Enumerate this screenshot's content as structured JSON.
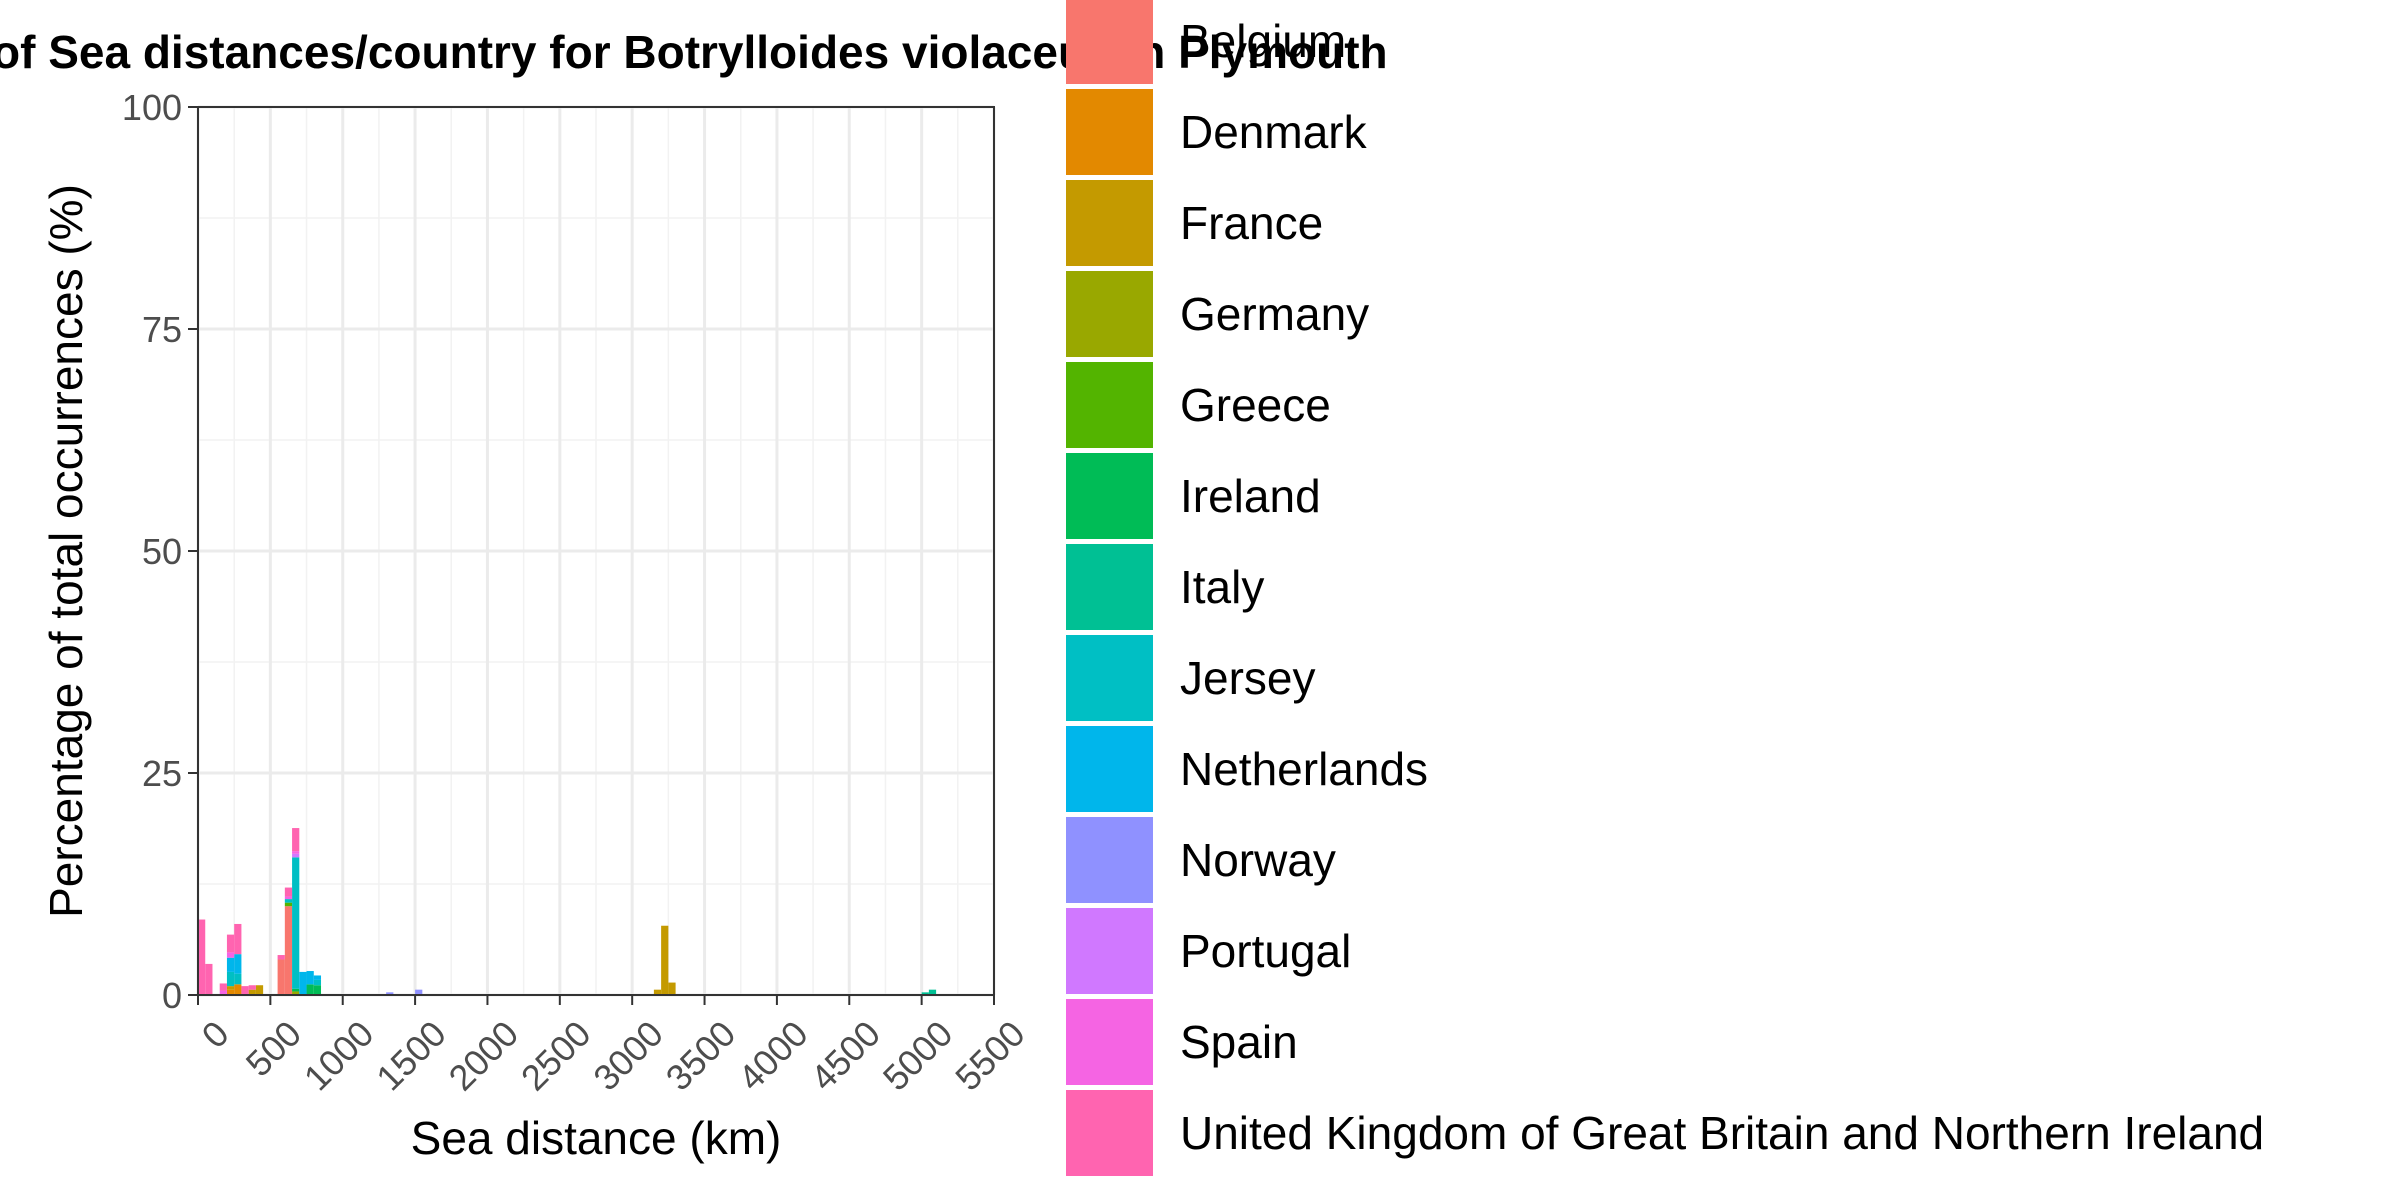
{
  "chart_data": {
    "type": "bar",
    "stacked": true,
    "title": "of Sea distances/country for Botrylloides violaceus in Plymouth",
    "xlabel": "Sea distance (km)",
    "ylabel": "Percentage of total occurrences (%)",
    "xlim": [
      0,
      5500
    ],
    "ylim": [
      0,
      100
    ],
    "x_ticks": [
      "0",
      "500",
      "1000",
      "1500",
      "2000",
      "2500",
      "3000",
      "3500",
      "4000",
      "4500",
      "5000",
      "5500"
    ],
    "y_ticks": [
      "0",
      "25",
      "50",
      "75",
      "100"
    ],
    "grid": true,
    "legend_position": "right",
    "bin_width_km": 50,
    "series": [
      {
        "name": "Belgium",
        "color": "#F8766D",
        "points": [
          {
            "x": 550,
            "y": 4.0
          },
          {
            "x": 600,
            "y": 10.0
          }
        ]
      },
      {
        "name": "Denmark",
        "color": "#E38900",
        "points": [
          {
            "x": 200,
            "y": 0.6
          },
          {
            "x": 250,
            "y": 1.2
          }
        ]
      },
      {
        "name": "France",
        "color": "#C49A00",
        "points": [
          {
            "x": 200,
            "y": 0.4
          },
          {
            "x": 350,
            "y": 0.6
          },
          {
            "x": 400,
            "y": 1.1
          },
          {
            "x": 3150,
            "y": 0.6
          },
          {
            "x": 3200,
            "y": 7.8
          },
          {
            "x": 3250,
            "y": 1.4
          }
        ]
      },
      {
        "name": "Germany",
        "color": "#99A800",
        "points": [
          {
            "x": 650,
            "y": 0.4
          }
        ]
      },
      {
        "name": "Greece",
        "color": "#53B400",
        "points": [
          {
            "x": 600,
            "y": 0.4
          }
        ]
      },
      {
        "name": "Ireland",
        "color": "#00BC56",
        "points": [
          {
            "x": 650,
            "y": 0.3
          },
          {
            "x": 750,
            "y": 1.2
          },
          {
            "x": 800,
            "y": 1.1
          }
        ]
      },
      {
        "name": "Italy",
        "color": "#00C094",
        "points": [
          {
            "x": 5000,
            "y": 0.3
          },
          {
            "x": 5050,
            "y": 0.6
          }
        ]
      },
      {
        "name": "Jersey",
        "color": "#00BFC4",
        "points": [
          {
            "x": 200,
            "y": 1.6
          },
          {
            "x": 250,
            "y": 1.2
          },
          {
            "x": 600,
            "y": 0.4
          },
          {
            "x": 650,
            "y": 14.8
          },
          {
            "x": 800,
            "y": 0.6
          }
        ]
      },
      {
        "name": "Netherlands",
        "color": "#00B6EB",
        "points": [
          {
            "x": 200,
            "y": 1.6
          },
          {
            "x": 250,
            "y": 2.2
          },
          {
            "x": 700,
            "y": 2.6
          },
          {
            "x": 750,
            "y": 1.5
          },
          {
            "x": 800,
            "y": 0.5
          }
        ]
      },
      {
        "name": "Norway",
        "color": "#8F91FF",
        "points": [
          {
            "x": 1300,
            "y": 0.3
          },
          {
            "x": 1500,
            "y": 0.6
          }
        ]
      },
      {
        "name": "Portugal",
        "color": "#D078FF",
        "points": [
          {
            "x": 650,
            "y": 0.4
          }
        ]
      },
      {
        "name": "Spain",
        "color": "#F564E3",
        "points": [
          {
            "x": 150,
            "y": 0.5
          },
          {
            "x": 200,
            "y": 0.6
          },
          {
            "x": 600,
            "y": 0.3
          },
          {
            "x": 650,
            "y": 0.3
          }
        ]
      },
      {
        "name": "United Kingdom of Great Britain and Northern Ireland",
        "color": "#FF64B0",
        "points": [
          {
            "x": 0,
            "y": 8.5
          },
          {
            "x": 50,
            "y": 3.5
          },
          {
            "x": 150,
            "y": 0.8
          },
          {
            "x": 200,
            "y": 2.0
          },
          {
            "x": 250,
            "y": 3.4
          },
          {
            "x": 300,
            "y": 1.0
          },
          {
            "x": 350,
            "y": 0.5
          },
          {
            "x": 550,
            "y": 0.5
          },
          {
            "x": 600,
            "y": 1.0
          },
          {
            "x": 650,
            "y": 2.6
          }
        ]
      }
    ]
  }
}
